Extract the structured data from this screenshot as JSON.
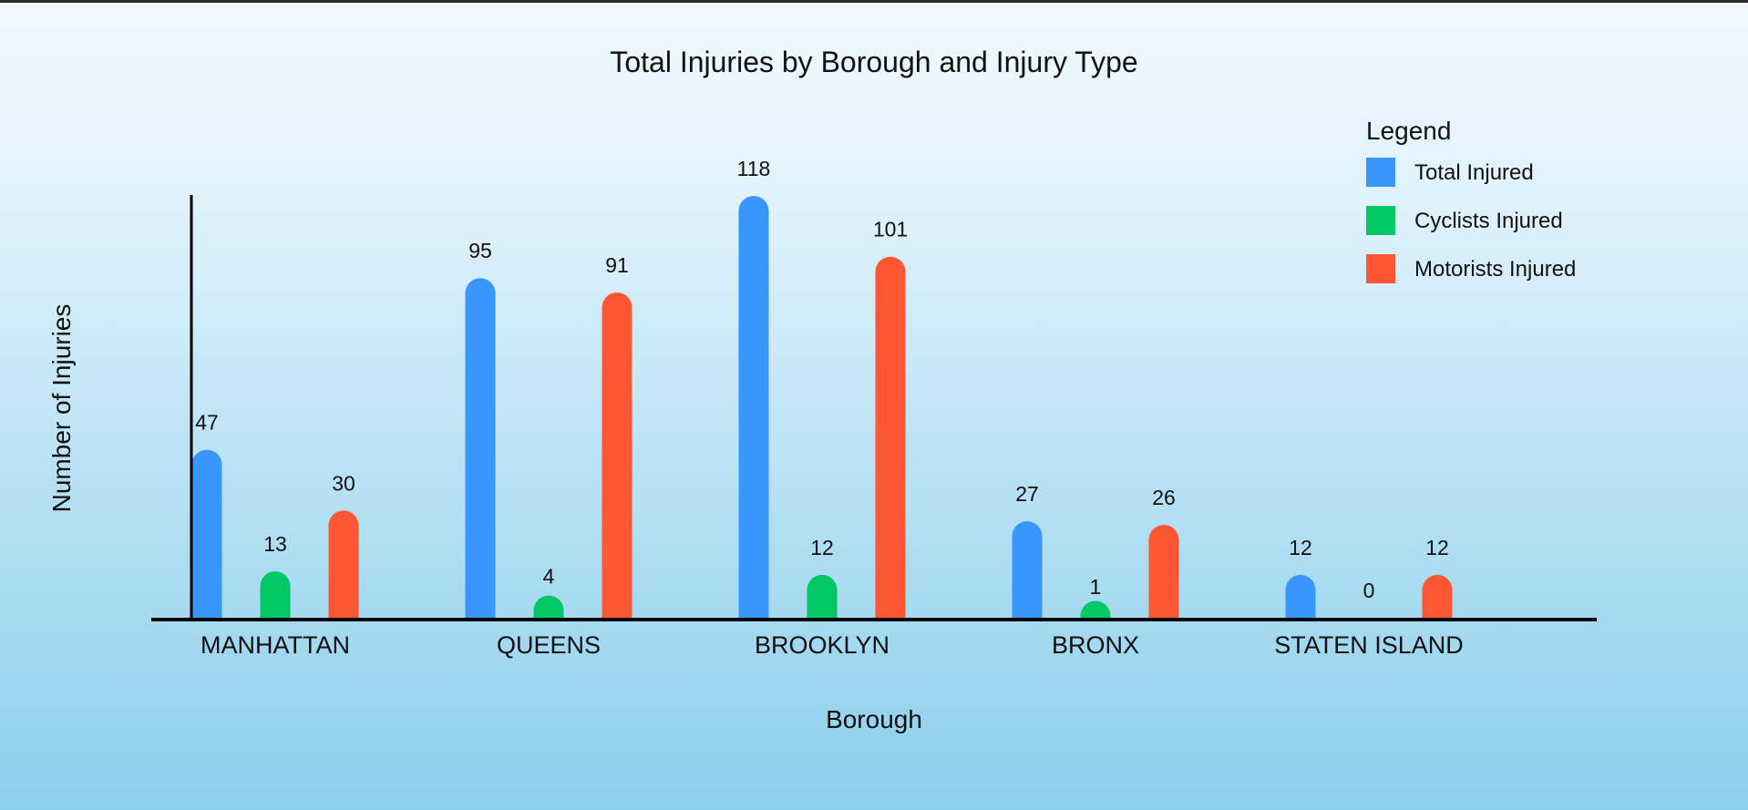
{
  "chart_data": {
    "type": "bar",
    "title": "Total Injuries by Borough and Injury Type",
    "xlabel": "Borough",
    "ylabel": "Number of Injuries",
    "categories": [
      "MANHATTAN",
      "QUEENS",
      "BROOKLYN",
      "BRONX",
      "STATEN ISLAND"
    ],
    "series": [
      {
        "name": "Total Injured",
        "color": "#3797fc",
        "values": [
          47,
          95,
          118,
          27,
          12
        ]
      },
      {
        "name": "Cyclists Injured",
        "color": "#00c864",
        "values": [
          13,
          4,
          12,
          1,
          0
        ]
      },
      {
        "name": "Motorists Injured",
        "color": "#ff5733",
        "values": [
          30,
          91,
          101,
          26,
          12
        ]
      }
    ],
    "ylim": [
      0,
      118
    ],
    "legend": {
      "title": "Legend",
      "position": "top-right"
    },
    "grid": false
  }
}
